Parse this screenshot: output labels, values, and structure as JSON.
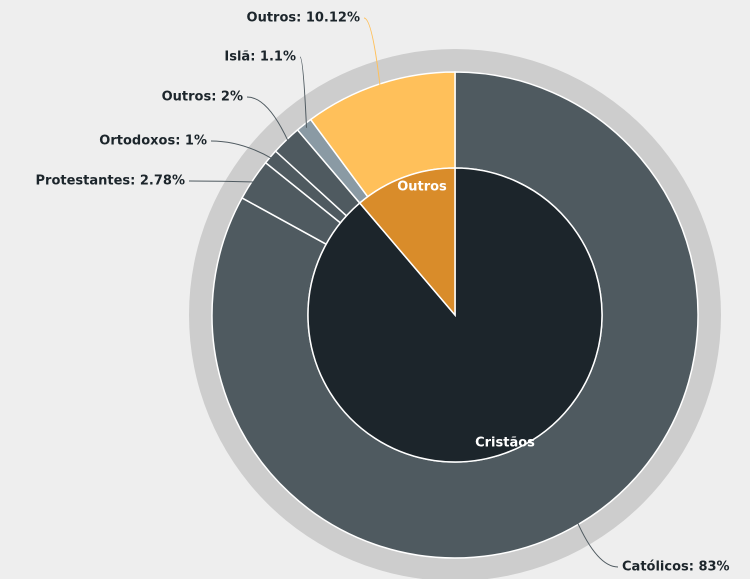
{
  "chart_data": {
    "type": "sunburst",
    "inner": {
      "categories": [
        "Cristãos",
        "Outros"
      ],
      "values": [
        88.78,
        11.22
      ],
      "colors": [
        "#1c252b",
        "#d98c2a"
      ]
    },
    "outer": {
      "values": [
        83,
        2.78,
        1,
        2,
        1.1,
        10.12
      ],
      "value_labels": [
        "Católicos: 83%",
        "Protestantes: 2.78%",
        "Ortodoxos: 1%",
        "Outros: 2%",
        "Islã: 1.1%",
        "Outros: 10.12%"
      ],
      "colors": [
        "#4f5a60",
        "#4f5a60",
        "#4f5a60",
        "#4f5a60",
        "#8a9aa4",
        "#ffc05a"
      ]
    }
  }
}
